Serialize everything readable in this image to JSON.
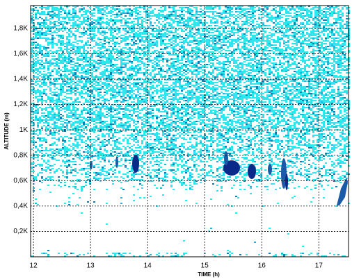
{
  "chart_data": {
    "type": "heatmap",
    "x_label": "TIME (h)",
    "y_label": "ALTITUDE (m)",
    "xlim": [
      11.95,
      17.52
    ],
    "xticks": [
      12,
      13,
      14,
      15,
      16,
      17
    ],
    "ylim": [
      0,
      1980
    ],
    "yticks": [
      {
        "value": 200,
        "label": "0,2K"
      },
      {
        "value": 400,
        "label": "0,4K"
      },
      {
        "value": 600,
        "label": "0,6K"
      },
      {
        "value": 800,
        "label": "0,8K"
      },
      {
        "value": 1000,
        "label": "1K"
      },
      {
        "value": 1200,
        "label": "1,2K"
      },
      {
        "value": 1400,
        "label": "1,4K"
      },
      {
        "value": 1600,
        "label": "1,6K"
      },
      {
        "value": 1800,
        "label": "1,8K"
      }
    ],
    "grid": true
  }
}
